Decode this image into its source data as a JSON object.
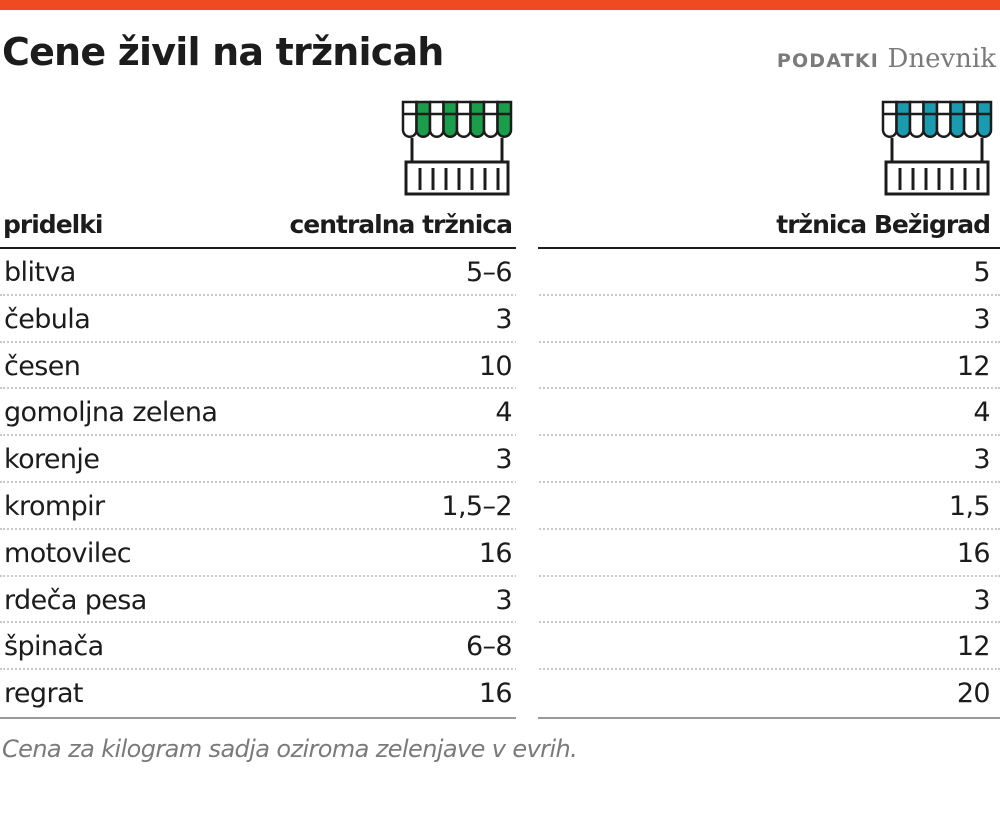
{
  "title": "Cene živil na tržnicah",
  "credit": {
    "label": "PODATKI",
    "source": "Dnevnik"
  },
  "colors": {
    "top_bar": "#f04a23",
    "central_awning": "#1a9e4b",
    "bezigrad_awning": "#1b9bb0"
  },
  "icons": {
    "central": "market-stall-icon",
    "bezigrad": "market-stall-icon"
  },
  "columns": {
    "products": "pridelki",
    "central": "centralna tržnica",
    "bezigrad": "tržnica Bežigrad"
  },
  "rows": [
    {
      "name": "blitva",
      "central": "5–6",
      "bezigrad": "5"
    },
    {
      "name": "čebula",
      "central": "3",
      "bezigrad": "3"
    },
    {
      "name": "česen",
      "central": "10",
      "bezigrad": "12"
    },
    {
      "name": "gomoljna zelena",
      "central": "4",
      "bezigrad": "4"
    },
    {
      "name": "korenje",
      "central": "3",
      "bezigrad": "3"
    },
    {
      "name": "krompir",
      "central": "1,5–2",
      "bezigrad": "1,5"
    },
    {
      "name": "motovilec",
      "central": "16",
      "bezigrad": "16"
    },
    {
      "name": "rdeča pesa",
      "central": "3",
      "bezigrad": "3"
    },
    {
      "name": "špinača",
      "central": "6–8",
      "bezigrad": "12"
    },
    {
      "name": "regrat",
      "central": "16",
      "bezigrad": "20"
    }
  ],
  "note": "Cena za kilogram sadja oziroma zelenjave v evrih."
}
